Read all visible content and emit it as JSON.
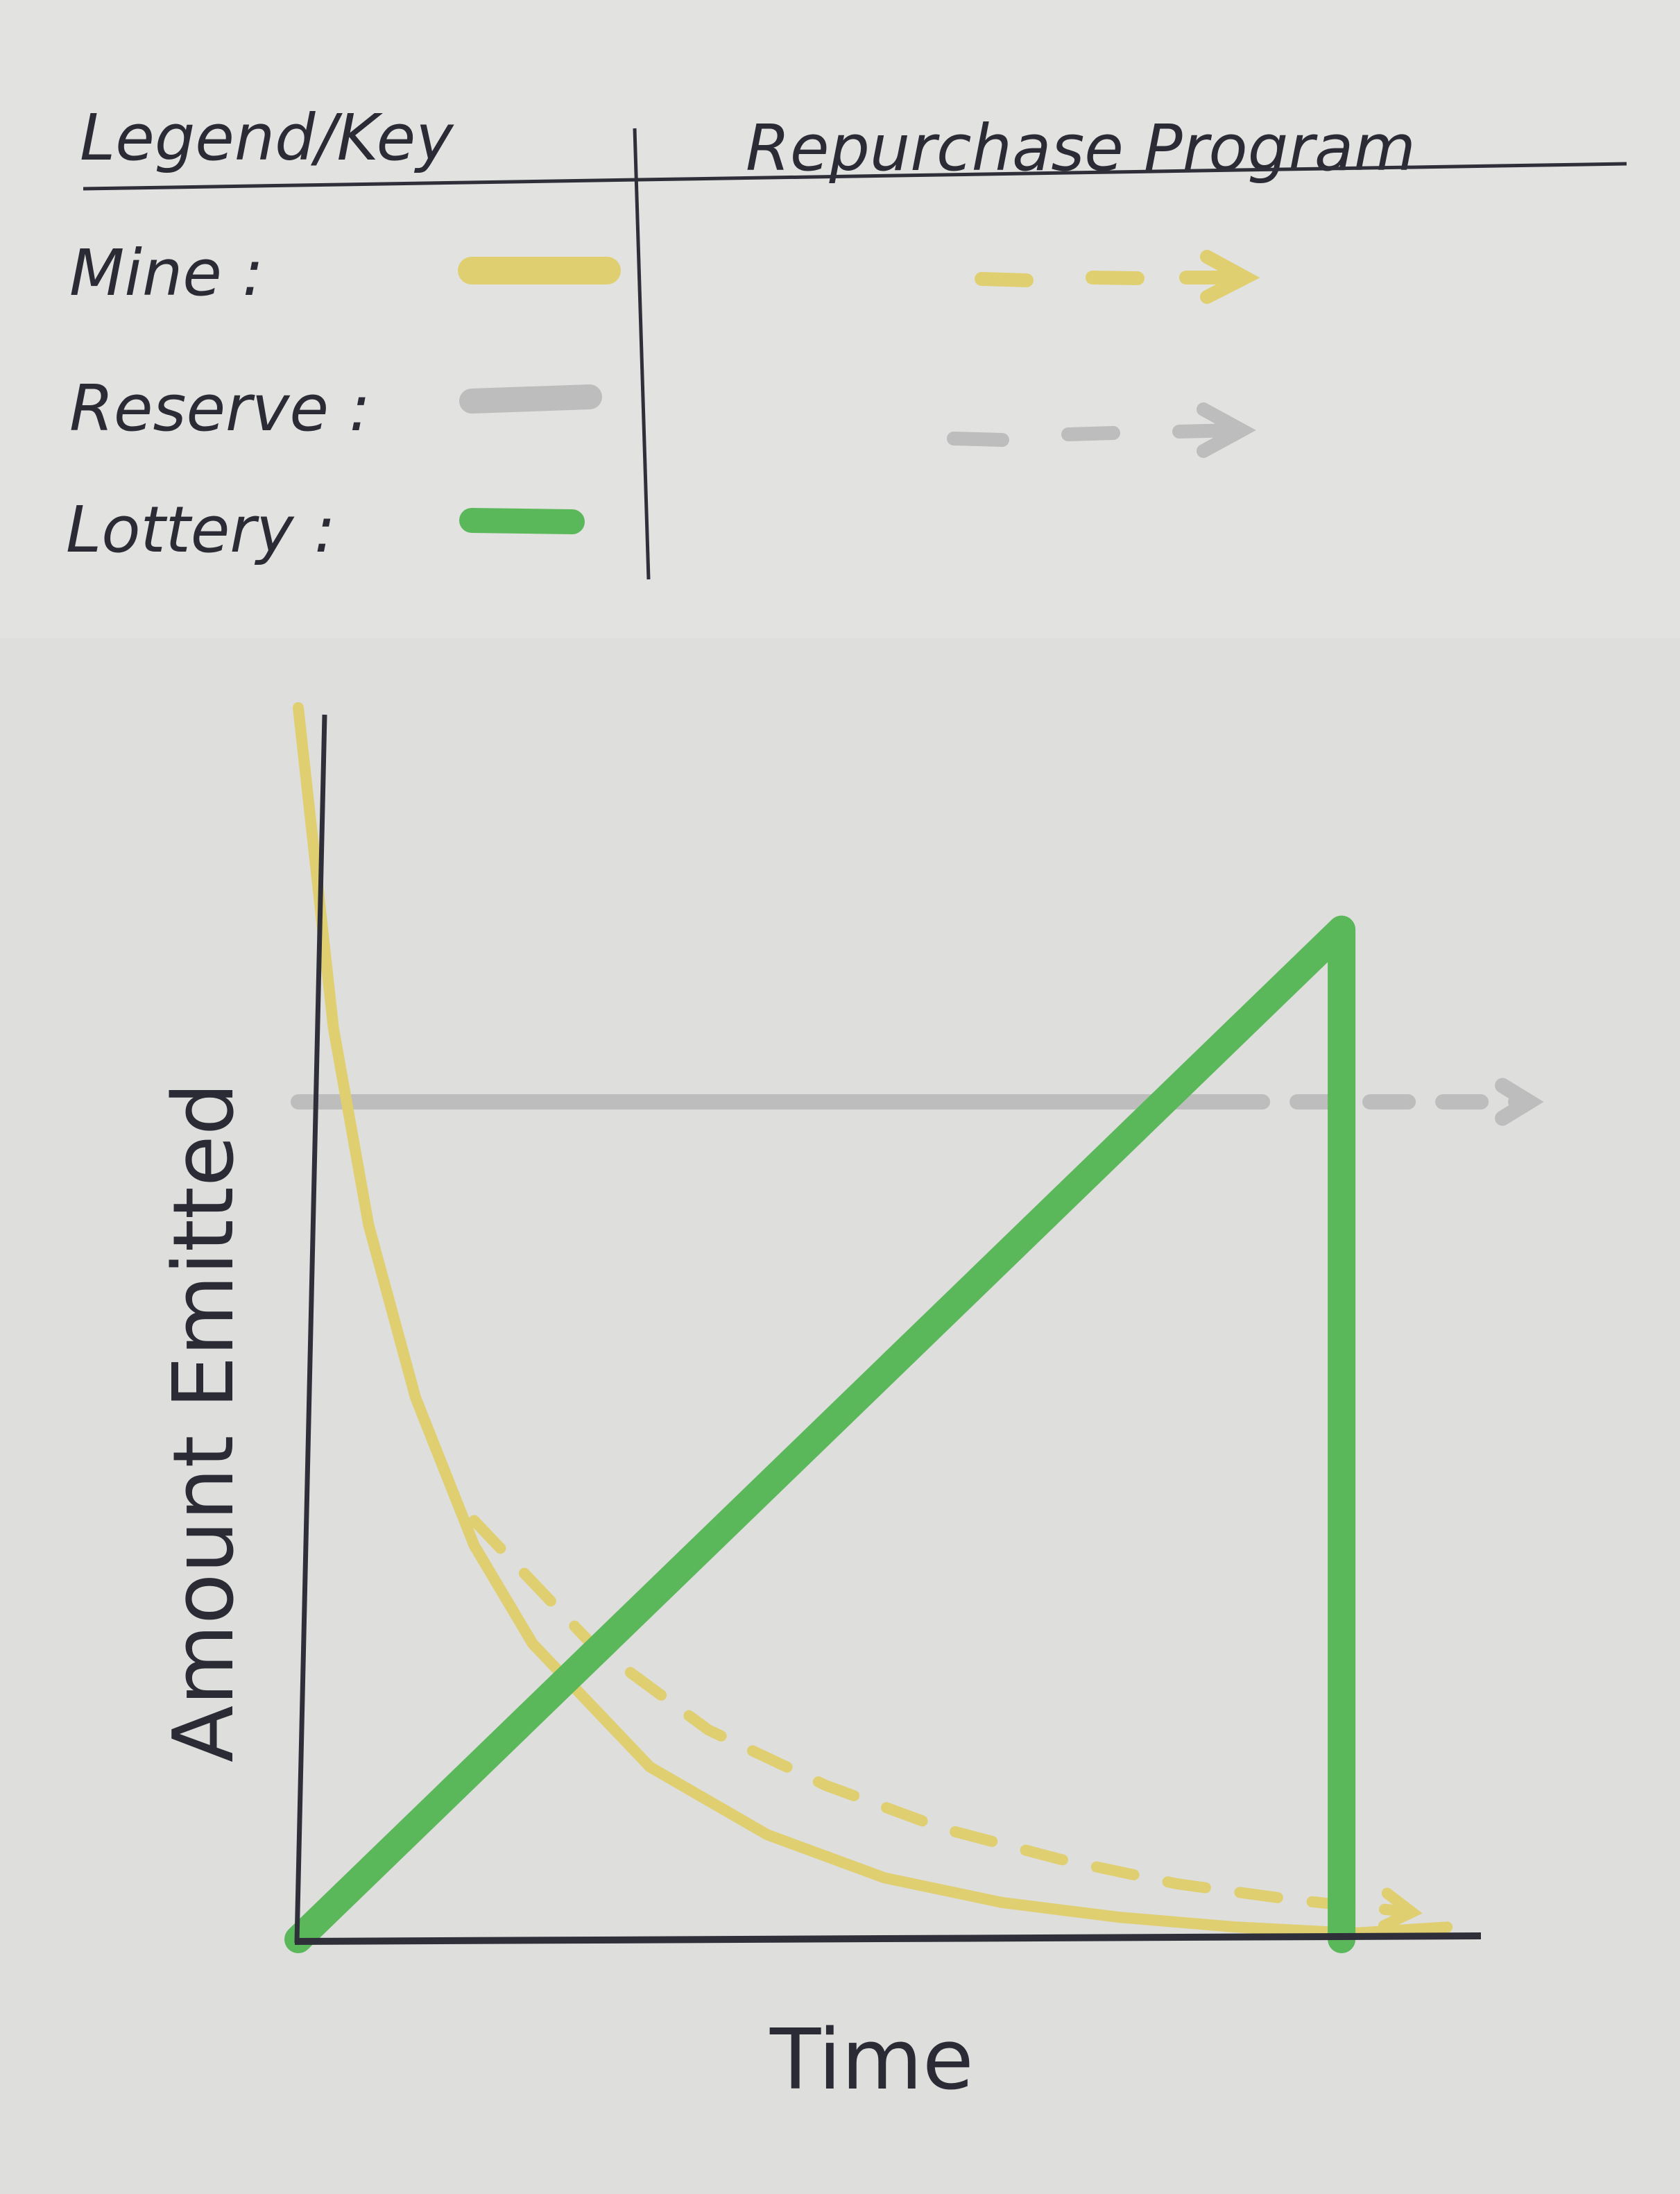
{
  "legend": {
    "heading": "Legend/Key",
    "repurchase_heading": "Repurchase Program",
    "entries": [
      {
        "label": "Mine :",
        "color": "#e0cf70"
      },
      {
        "label": "Reserve :",
        "color": "#bdbdbd"
      },
      {
        "label": "Lottery :",
        "color": "#5bb85a"
      }
    ]
  },
  "chart_data": {
    "type": "line",
    "title": "",
    "xlabel": "Time",
    "ylabel": "Amount Emitted",
    "xlim": [
      0,
      10
    ],
    "ylim": [
      0,
      10
    ],
    "ticks": "none",
    "grid": false,
    "legend_position": "top",
    "series": [
      {
        "name": "Mine",
        "color": "#e0cf70",
        "style": "solid",
        "x": [
          0,
          0.3,
          0.6,
          1.0,
          1.5,
          2.0,
          3.0,
          4.0,
          5.0,
          6.0,
          7.0,
          8.0,
          9.0,
          9.8
        ],
        "y": [
          10,
          7.4,
          5.8,
          4.4,
          3.2,
          2.4,
          1.4,
          0.85,
          0.5,
          0.3,
          0.18,
          0.1,
          0.05,
          0.1
        ]
      },
      {
        "name": "Mine (Repurchase Program)",
        "color": "#e0cf70",
        "style": "dashed",
        "x": [
          1.5,
          2.5,
          3.5,
          4.5,
          5.5,
          6.5,
          7.5,
          8.5,
          9.5
        ],
        "y": [
          3.4,
          2.4,
          1.7,
          1.25,
          0.9,
          0.65,
          0.45,
          0.32,
          0.22
        ]
      },
      {
        "name": "Reserve",
        "color": "#bdbdbd",
        "style": "solid",
        "x": [
          0,
          7.9
        ],
        "y": [
          6.8,
          6.8
        ]
      },
      {
        "name": "Reserve (Repurchase Program)",
        "color": "#bdbdbd",
        "style": "dashed",
        "x": [
          7.9,
          10.5
        ],
        "y": [
          6.8,
          6.8
        ]
      },
      {
        "name": "Lottery",
        "color": "#5bb85a",
        "style": "solid",
        "x": [
          0,
          8.9,
          8.9
        ],
        "y": [
          0,
          8.2,
          0
        ]
      }
    ]
  }
}
